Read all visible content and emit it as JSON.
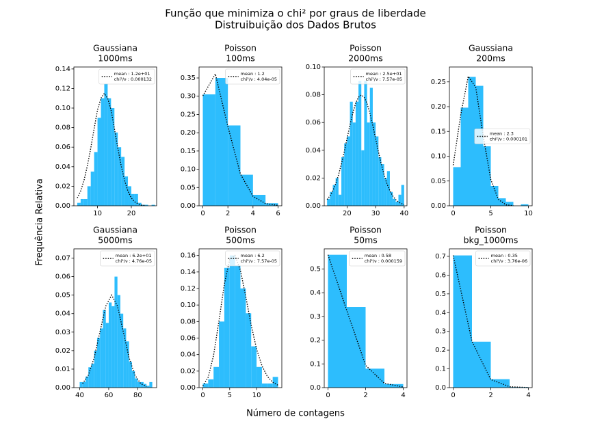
{
  "title": "Função que minimiza o chi² por graus de liberdade",
  "subtitle": "Distruibuição dos Dados Brutos",
  "xlabel": "Número de contagens",
  "ylabel": "Frequência Relativa",
  "chart_data": [
    {
      "type": "histogram",
      "title": "Gaussiana",
      "subtitle": "1000ms",
      "color": "#2dbdfd",
      "legend": "upper right",
      "bins": [
        4,
        5,
        6,
        7,
        8,
        9,
        10,
        11,
        12,
        13,
        14,
        15,
        16,
        17,
        18,
        19,
        20,
        21,
        22,
        23,
        24,
        25,
        26,
        27
      ],
      "values": [
        0.003,
        0.007,
        0.007,
        0.02,
        0.035,
        0.055,
        0.09,
        0.11,
        0.125,
        0.11,
        0.1,
        0.075,
        0.06,
        0.05,
        0.03,
        0.02,
        0.012,
        0.012,
        0.003,
        0.001,
        0.001,
        0,
        0.001
      ],
      "xlim": [
        3,
        27.5
      ],
      "xticks": [
        10,
        20
      ],
      "ylim": [
        0,
        0.142
      ],
      "yticks": [
        {
          "value": 0,
          "label": "0.00"
        },
        {
          "value": 0.02,
          "label": "0.02"
        },
        {
          "value": 0.04,
          "label": "0.04"
        },
        {
          "value": 0.06,
          "label": "0.06"
        },
        {
          "value": 0.08,
          "label": "0.08"
        },
        {
          "value": 0.1,
          "label": "0.10"
        },
        {
          "value": 0.12,
          "label": "0.12"
        },
        {
          "value": 0.14,
          "label": "0.14"
        }
      ],
      "series": [
        {
          "name": [
            "mean : 1.2e+01",
            "chi²/ν : 0.000132"
          ],
          "color": "#000000",
          "x": [
            4,
            5,
            6,
            7,
            8,
            9,
            10,
            11,
            12,
            13,
            14,
            15,
            16,
            17,
            18,
            19,
            20,
            21,
            22,
            23,
            24
          ],
          "values": [
            0.008,
            0.015,
            0.026,
            0.041,
            0.059,
            0.079,
            0.098,
            0.11,
            0.115,
            0.11,
            0.098,
            0.079,
            0.059,
            0.041,
            0.026,
            0.015,
            0.008,
            0.004,
            0.002,
            0.0007,
            0.0003
          ]
        }
      ]
    },
    {
      "type": "histogram",
      "title": "Poisson",
      "subtitle": "100ms",
      "color": "#2dbdfd",
      "legend": "upper right",
      "bins": [
        0,
        1,
        2,
        3,
        4,
        5,
        6
      ],
      "values": [
        0.305,
        0.35,
        0.22,
        0.085,
        0.03,
        0.007
      ],
      "xlim": [
        -0.3,
        6.3
      ],
      "xticks": [
        0,
        2,
        4,
        6
      ],
      "ylim": [
        0,
        0.38
      ],
      "yticks": [
        {
          "value": 0,
          "label": "0.00"
        },
        {
          "value": 0.05,
          "label": "0.05"
        },
        {
          "value": 0.1,
          "label": "0.10"
        },
        {
          "value": 0.15,
          "label": "0.15"
        },
        {
          "value": 0.2,
          "label": "0.20"
        },
        {
          "value": 0.25,
          "label": "0.25"
        },
        {
          "value": 0.3,
          "label": "0.30"
        },
        {
          "value": 0.35,
          "label": "0.35"
        }
      ],
      "series": [
        {
          "name": [
            "mean : 1.2",
            "chi²/ν : 4.04e-05"
          ],
          "color": "#000000",
          "x": [
            0,
            1,
            2,
            3,
            4,
            5,
            6
          ],
          "values": [
            0.301,
            0.361,
            0.217,
            0.087,
            0.026,
            0.006,
            0.0012
          ]
        }
      ]
    },
    {
      "type": "histogram",
      "title": "Poisson",
      "subtitle": "2000ms",
      "color": "#2dbdfd",
      "legend": "upper right",
      "bins": [
        13,
        14,
        15,
        16,
        17,
        18,
        19,
        20,
        21,
        22,
        23,
        24,
        25,
        26,
        27,
        28,
        29,
        30,
        31,
        32,
        33,
        34,
        35,
        36,
        37,
        38,
        39,
        40
      ],
      "values": [
        0.005,
        0.01,
        0.015,
        0.02,
        0.008,
        0.035,
        0.045,
        0.05,
        0.075,
        0.06,
        0.075,
        0.09,
        0.04,
        0.09,
        0.06,
        0.085,
        0.06,
        0.05,
        0.035,
        0.03,
        0.02,
        0.025,
        0.01,
        0.005,
        0.003,
        0.008,
        0.015
      ],
      "xlim": [
        12,
        41
      ],
      "xticks": [
        20,
        30,
        40
      ],
      "ylim": [
        0,
        0.1
      ],
      "yticks": [
        {
          "value": 0,
          "label": "0.00"
        },
        {
          "value": 0.02,
          "label": "0.02"
        },
        {
          "value": 0.04,
          "label": "0.04"
        },
        {
          "value": 0.06,
          "label": "0.06"
        },
        {
          "value": 0.08,
          "label": "0.08"
        },
        {
          "value": 0.1,
          "label": "0.10"
        }
      ],
      "series": [
        {
          "name": [
            "mean : 2.5e+01",
            "chi²/ν : 7.57e-05"
          ],
          "color": "#000000",
          "x": [
            13,
            14,
            15,
            16,
            17,
            18,
            19,
            20,
            21,
            22,
            23,
            24,
            25,
            26,
            27,
            28,
            29,
            30,
            31,
            32,
            33,
            34,
            35,
            36,
            37,
            38,
            39,
            40
          ],
          "values": [
            0.0045,
            0.0071,
            0.0108,
            0.0158,
            0.0222,
            0.0299,
            0.0388,
            0.0484,
            0.058,
            0.0667,
            0.0737,
            0.0782,
            0.0798,
            0.0782,
            0.0737,
            0.0667,
            0.058,
            0.0484,
            0.0388,
            0.0299,
            0.0222,
            0.0158,
            0.0108,
            0.0071,
            0.0045,
            0.0027,
            0.0016,
            0.0009
          ]
        }
      ]
    },
    {
      "type": "histogram",
      "title": "Gaussiana",
      "subtitle": "200ms",
      "color": "#2dbdfd",
      "legend": "center right",
      "bins": [
        0,
        1,
        2,
        3,
        4,
        5,
        6,
        7,
        8,
        9,
        10
      ],
      "values": [
        0.078,
        0.198,
        0.26,
        0.242,
        0.12,
        0.04,
        0.015,
        0.008,
        0,
        0.003
      ],
      "xlim": [
        -0.5,
        10.5
      ],
      "xticks": [
        0,
        5,
        10
      ],
      "ylim": [
        0,
        0.28
      ],
      "yticks": [
        {
          "value": 0,
          "label": "0.00"
        },
        {
          "value": 0.05,
          "label": "0.05"
        },
        {
          "value": 0.1,
          "label": "0.10"
        },
        {
          "value": 0.15,
          "label": "0.15"
        },
        {
          "value": 0.2,
          "label": "0.20"
        },
        {
          "value": 0.25,
          "label": "0.25"
        }
      ],
      "series": [
        {
          "name": [
            "mean : 2.3",
            "chi²/ν : 0.000101"
          ],
          "color": "#000000",
          "x": [
            0,
            1,
            2,
            3,
            4,
            5,
            6,
            7,
            8
          ],
          "values": [
            0.082,
            0.183,
            0.261,
            0.239,
            0.14,
            0.053,
            0.013,
            0.002,
            0.0002
          ]
        }
      ]
    },
    {
      "type": "histogram",
      "title": "Gaussiana",
      "subtitle": "5000ms",
      "color": "#2dbdfd",
      "legend": "upper right",
      "bins": [
        40,
        42,
        44,
        46,
        48,
        50,
        52,
        54,
        56,
        58,
        60,
        62,
        64,
        66,
        68,
        70,
        72,
        74,
        76,
        78,
        80,
        82,
        84,
        86,
        88,
        90
      ],
      "values": [
        0.003,
        0.003,
        0.006,
        0.011,
        0.013,
        0.02,
        0.027,
        0.032,
        0.042,
        0.035,
        0.046,
        0.044,
        0.06,
        0.05,
        0.04,
        0.032,
        0.025,
        0.014,
        0.009,
        0.005,
        0.003,
        0.003,
        0.002,
        0.001,
        0.003
      ],
      "xlim": [
        36,
        93
      ],
      "xticks": [
        40,
        60,
        80
      ],
      "ylim": [
        0,
        0.075
      ],
      "yticks": [
        {
          "value": 0,
          "label": "0.00"
        },
        {
          "value": 0.01,
          "label": "0.01"
        },
        {
          "value": 0.02,
          "label": "0.02"
        },
        {
          "value": 0.03,
          "label": "0.03"
        },
        {
          "value": 0.04,
          "label": "0.04"
        },
        {
          "value": 0.05,
          "label": "0.05"
        },
        {
          "value": 0.06,
          "label": "0.06"
        },
        {
          "value": 0.07,
          "label": "0.07"
        }
      ],
      "series": [
        {
          "name": [
            "mean : 6.2e+01",
            "chi²/ν : 4.76e-05"
          ],
          "color": "#000000",
          "x": [
            42,
            46,
            50,
            54,
            58,
            62,
            66,
            70,
            74,
            78,
            82,
            86
          ],
          "values": [
            0.0022,
            0.0068,
            0.0162,
            0.0303,
            0.0441,
            0.05,
            0.0441,
            0.0303,
            0.0162,
            0.0068,
            0.0022,
            0.0006
          ]
        }
      ]
    },
    {
      "type": "histogram",
      "title": "Poisson",
      "subtitle": "500ms",
      "color": "#2dbdfd",
      "legend": "upper right",
      "bins": [
        0,
        1,
        2,
        3,
        4,
        5,
        6,
        7,
        8,
        9,
        10,
        11,
        12,
        13,
        14
      ],
      "values": [
        0.005,
        0.01,
        0.025,
        0.08,
        0.145,
        0.16,
        0.148,
        0.12,
        0.09,
        0.05,
        0.025,
        0.005,
        0.005,
        0.013
      ],
      "xlim": [
        -0.7,
        14.7
      ],
      "xticks": [
        0,
        5,
        10
      ],
      "ylim": [
        0,
        0.168
      ],
      "yticks": [
        {
          "value": 0,
          "label": "0.00"
        },
        {
          "value": 0.02,
          "label": "0.02"
        },
        {
          "value": 0.04,
          "label": "0.04"
        },
        {
          "value": 0.06,
          "label": "0.06"
        },
        {
          "value": 0.08,
          "label": "0.08"
        },
        {
          "value": 0.1,
          "label": "0.10"
        },
        {
          "value": 0.12,
          "label": "0.12"
        },
        {
          "value": 0.14,
          "label": "0.14"
        },
        {
          "value": 0.16,
          "label": "0.16"
        }
      ],
      "series": [
        {
          "name": [
            "mean : 6.2",
            "chi²/ν : 7.57e-05"
          ],
          "color": "#000000",
          "x": [
            0,
            1,
            2,
            3,
            4,
            5,
            6,
            7,
            8,
            9,
            10,
            11,
            12,
            13,
            14
          ],
          "values": [
            0.002,
            0.0126,
            0.039,
            0.0806,
            0.125,
            0.155,
            0.16,
            0.142,
            0.11,
            0.0757,
            0.0469,
            0.0265,
            0.0137,
            0.0065,
            0.0029
          ]
        }
      ]
    },
    {
      "type": "histogram",
      "title": "Poisson",
      "subtitle": "50ms",
      "color": "#2dbdfd",
      "legend": "upper right",
      "bins": [
        0,
        1,
        2,
        3,
        4
      ],
      "values": [
        0.56,
        0.34,
        0.08,
        0.015
      ],
      "xlim": [
        -0.2,
        4.2
      ],
      "xticks": [
        0,
        2,
        4
      ],
      "ylim": [
        0,
        0.585
      ],
      "yticks": [
        {
          "value": 0,
          "label": "0.0"
        },
        0.1,
        0.2,
        0.3,
        0.4,
        0.5
      ],
      "series": [
        {
          "name": [
            "mean : 0.58",
            "chi²/ν : 0.000159"
          ],
          "color": "#000000",
          "x": [
            0,
            1,
            2,
            3,
            4
          ],
          "values": [
            0.56,
            0.325,
            0.094,
            0.018,
            0.0027
          ]
        }
      ]
    },
    {
      "type": "histogram",
      "title": "Poisson",
      "subtitle": "bkg_1000ms",
      "color": "#2dbdfd",
      "legend": "upper right",
      "bins": [
        0,
        1,
        2,
        3,
        4
      ],
      "values": [
        0.705,
        0.245,
        0.045,
        0.003
      ],
      "xlim": [
        -0.2,
        4.2
      ],
      "xticks": [
        0,
        2,
        4
      ],
      "ylim": [
        0,
        0.74
      ],
      "yticks": [
        {
          "value": 0,
          "label": "0.0"
        },
        0.1,
        0.2,
        0.3,
        0.4,
        0.5,
        0.6,
        0.7
      ],
      "series": [
        {
          "name": [
            "mean : 0.35",
            "chi²/ν : 3.76e-06"
          ],
          "color": "#000000",
          "x": [
            0,
            1,
            2,
            3,
            4
          ],
          "values": [
            0.705,
            0.247,
            0.043,
            0.005,
            0.0004
          ]
        }
      ]
    }
  ]
}
